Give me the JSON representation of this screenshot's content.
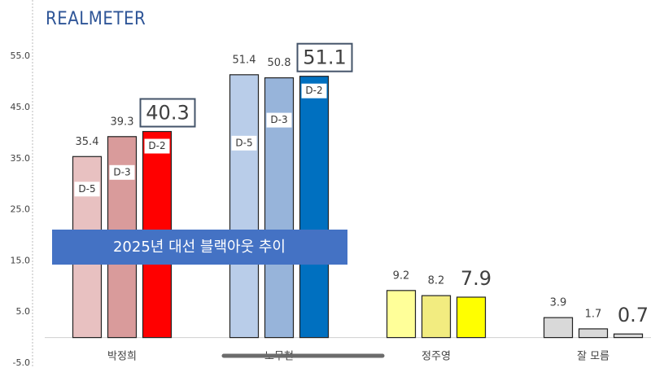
{
  "chart_data": {
    "type": "bar",
    "logo": "REALMETER",
    "annotation": "2025년 대선 블랙아웃 추이",
    "categories": [
      "박정희",
      "노무현",
      "정주영",
      "잘 모름"
    ],
    "series": [
      {
        "name": "D-5",
        "colors": [
          "#e8c1c1",
          "#b9cde9",
          "#ffff99",
          "#d9d9d9"
        ],
        "values": [
          35.4,
          51.4,
          9.2,
          3.9
        ]
      },
      {
        "name": "D-3",
        "colors": [
          "#d99b9b",
          "#97b4da",
          "#f2ec80",
          "#d9d9d9"
        ],
        "values": [
          39.3,
          50.8,
          8.2,
          1.7
        ]
      },
      {
        "name": "D-2",
        "colors": [
          "#ff0000",
          "#0070c0",
          "#ffff00",
          "#d9d9d9"
        ],
        "values": [
          40.3,
          51.1,
          7.9,
          0.7
        ],
        "large_labels": true
      }
    ],
    "show_tags": [
      true,
      true,
      false,
      false
    ],
    "ylim": [
      -5,
      60
    ],
    "yticks": [
      {
        "value": -5,
        "label": "-5.0"
      },
      {
        "value": 5,
        "label": "5.0"
      },
      {
        "value": 15,
        "label": "15.0"
      },
      {
        "value": 25,
        "label": "25.0"
      },
      {
        "value": 35,
        "label": "35.0"
      },
      {
        "value": 45,
        "label": "45.0"
      },
      {
        "value": 55,
        "label": "55.0"
      }
    ]
  }
}
